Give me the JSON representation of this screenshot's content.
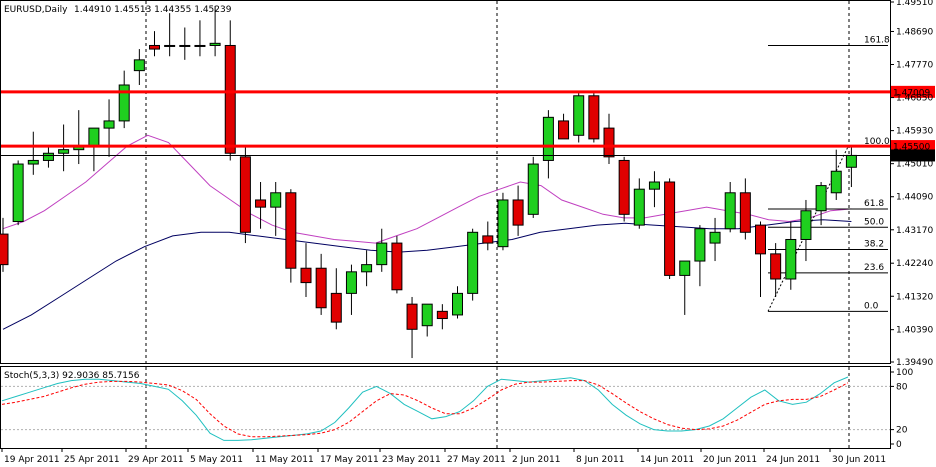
{
  "chart_data": {
    "type": "candlestick",
    "header": {
      "title": "EURUSD,Daily",
      "ohlc": "1.44910 1.45513 1.44355 1.45239"
    },
    "colors": {
      "bull": "#1fcf1f",
      "bear": "#e00000",
      "frame": "#000000",
      "resistance": "#ff0000",
      "ma_fast": "#c040c0",
      "ma_slow": "#000060",
      "stoch_main": "#20c0c0",
      "stoch_signal": "#ff0000"
    },
    "price_axis": {
      "min": 1.3949,
      "max": 1.4951,
      "ticks": [
        "1.49510",
        "1.48690",
        "1.47770",
        "1.46850",
        "1.45930",
        "1.45010",
        "1.44090",
        "1.43170",
        "1.42240",
        "1.41320",
        "1.40390",
        "1.39490"
      ]
    },
    "date_labels": [
      "19 Apr 2011",
      "25 Apr 2011",
      "29 Apr 2011",
      "5 May 2011",
      "11 May 2011",
      "17 May 2011",
      "23 May 2011",
      "27 May 2011",
      "2 Jun 2011",
      "8 Jun 2011",
      "14 Jun 2011",
      "20 Jun 2011",
      "24 Jun 2011",
      "30 Jun 2011"
    ],
    "candles": [
      {
        "o": 1.4305,
        "h": 1.435,
        "l": 1.42,
        "c": 1.422
      },
      {
        "o": 1.434,
        "h": 1.451,
        "l": 1.433,
        "c": 1.45
      },
      {
        "o": 1.45,
        "h": 1.459,
        "l": 1.447,
        "c": 1.451
      },
      {
        "o": 1.451,
        "h": 1.455,
        "l": 1.449,
        "c": 1.453
      },
      {
        "o": 1.453,
        "h": 1.461,
        "l": 1.448,
        "c": 1.454
      },
      {
        "o": 1.454,
        "h": 1.465,
        "l": 1.45,
        "c": 1.455
      },
      {
        "o": 1.455,
        "h": 1.46,
        "l": 1.448,
        "c": 1.46
      },
      {
        "o": 1.46,
        "h": 1.468,
        "l": 1.452,
        "c": 1.462
      },
      {
        "o": 1.462,
        "h": 1.476,
        "l": 1.46,
        "c": 1.472
      },
      {
        "o": 1.476,
        "h": 1.482,
        "l": 1.472,
        "c": 1.479
      },
      {
        "o": 1.483,
        "h": 1.487,
        "l": 1.48,
        "c": 1.482
      },
      {
        "o": 1.483,
        "h": 1.492,
        "l": 1.48,
        "c": 1.483
      },
      {
        "o": 1.483,
        "h": 1.488,
        "l": 1.479,
        "c": 1.483
      },
      {
        "o": 1.483,
        "h": 1.49,
        "l": 1.48,
        "c": 1.483
      },
      {
        "o": 1.483,
        "h": 1.494,
        "l": 1.48,
        "c": 1.4836
      },
      {
        "o": 1.483,
        "h": 1.49,
        "l": 1.451,
        "c": 1.453
      },
      {
        "o": 1.452,
        "h": 1.455,
        "l": 1.428,
        "c": 1.431
      },
      {
        "o": 1.44,
        "h": 1.445,
        "l": 1.432,
        "c": 1.438
      },
      {
        "o": 1.438,
        "h": 1.445,
        "l": 1.43,
        "c": 1.442
      },
      {
        "o": 1.442,
        "h": 1.443,
        "l": 1.417,
        "c": 1.421
      },
      {
        "o": 1.421,
        "h": 1.428,
        "l": 1.413,
        "c": 1.417
      },
      {
        "o": 1.421,
        "h": 1.425,
        "l": 1.408,
        "c": 1.41
      },
      {
        "o": 1.414,
        "h": 1.421,
        "l": 1.404,
        "c": 1.406
      },
      {
        "o": 1.414,
        "h": 1.422,
        "l": 1.408,
        "c": 1.42
      },
      {
        "o": 1.42,
        "h": 1.426,
        "l": 1.416,
        "c": 1.422
      },
      {
        "o": 1.422,
        "h": 1.432,
        "l": 1.42,
        "c": 1.428
      },
      {
        "o": 1.428,
        "h": 1.43,
        "l": 1.414,
        "c": 1.415
      },
      {
        "o": 1.411,
        "h": 1.413,
        "l": 1.396,
        "c": 1.404
      },
      {
        "o": 1.405,
        "h": 1.411,
        "l": 1.402,
        "c": 1.411
      },
      {
        "o": 1.409,
        "h": 1.411,
        "l": 1.404,
        "c": 1.407
      },
      {
        "o": 1.408,
        "h": 1.416,
        "l": 1.407,
        "c": 1.414
      },
      {
        "o": 1.414,
        "h": 1.432,
        "l": 1.412,
        "c": 1.431
      },
      {
        "o": 1.43,
        "h": 1.434,
        "l": 1.426,
        "c": 1.428
      },
      {
        "o": 1.427,
        "h": 1.442,
        "l": 1.426,
        "c": 1.44
      },
      {
        "o": 1.44,
        "h": 1.444,
        "l": 1.43,
        "c": 1.433
      },
      {
        "o": 1.436,
        "h": 1.452,
        "l": 1.435,
        "c": 1.45
      },
      {
        "o": 1.451,
        "h": 1.465,
        "l": 1.446,
        "c": 1.463
      },
      {
        "o": 1.462,
        "h": 1.464,
        "l": 1.457,
        "c": 1.457
      },
      {
        "o": 1.458,
        "h": 1.47,
        "l": 1.456,
        "c": 1.469
      },
      {
        "o": 1.469,
        "h": 1.47,
        "l": 1.456,
        "c": 1.457
      },
      {
        "o": 1.46,
        "h": 1.464,
        "l": 1.45,
        "c": 1.452
      },
      {
        "o": 1.451,
        "h": 1.452,
        "l": 1.434,
        "c": 1.436
      },
      {
        "o": 1.433,
        "h": 1.446,
        "l": 1.432,
        "c": 1.443
      },
      {
        "o": 1.443,
        "h": 1.448,
        "l": 1.438,
        "c": 1.445
      },
      {
        "o": 1.445,
        "h": 1.446,
        "l": 1.418,
        "c": 1.419
      },
      {
        "o": 1.419,
        "h": 1.423,
        "l": 1.408,
        "c": 1.423
      },
      {
        "o": 1.423,
        "h": 1.433,
        "l": 1.416,
        "c": 1.432
      },
      {
        "o": 1.428,
        "h": 1.435,
        "l": 1.423,
        "c": 1.431
      },
      {
        "o": 1.432,
        "h": 1.445,
        "l": 1.431,
        "c": 1.442
      },
      {
        "o": 1.442,
        "h": 1.446,
        "l": 1.429,
        "c": 1.431
      },
      {
        "o": 1.433,
        "h": 1.434,
        "l": 1.413,
        "c": 1.425
      },
      {
        "o": 1.425,
        "h": 1.428,
        "l": 1.413,
        "c": 1.418
      },
      {
        "o": 1.418,
        "h": 1.434,
        "l": 1.415,
        "c": 1.429
      },
      {
        "o": 1.429,
        "h": 1.44,
        "l": 1.423,
        "c": 1.437
      },
      {
        "o": 1.437,
        "h": 1.445,
        "l": 1.433,
        "c": 1.444
      },
      {
        "o": 1.442,
        "h": 1.454,
        "l": 1.44,
        "c": 1.448
      },
      {
        "o": 1.4491,
        "h": 1.4551,
        "l": 1.4436,
        "c": 1.4524
      }
    ],
    "ma_fast": [
      [
        1.432,
        1.434,
        1.437,
        1.441,
        1.445,
        1.45,
        1.455,
        1.458,
        1.456,
        1.45,
        1.444,
        1.44,
        1.436,
        1.433,
        1.431,
        1.43,
        1.429,
        1.4285,
        1.428,
        1.43,
        1.432,
        1.435,
        1.438,
        1.441,
        1.443,
        1.445,
        1.444,
        1.44,
        1.438,
        1.436,
        1.435,
        1.435,
        1.436,
        1.437,
        1.438,
        1.437,
        1.436,
        1.4345,
        1.434,
        1.435,
        1.437,
        1.4375
      ]
    ],
    "ma_slow": [
      1.404,
      1.408,
      1.413,
      1.418,
      1.423,
      1.427,
      1.43,
      1.431,
      1.431,
      1.43,
      1.429,
      1.428,
      1.427,
      1.426,
      1.4255,
      1.426,
      1.427,
      1.428,
      1.429,
      1.431,
      1.432,
      1.433,
      1.4335,
      1.433,
      1.4325,
      1.432,
      1.432,
      1.433,
      1.434,
      1.4345,
      1.434
    ],
    "horizontal_lines": [
      {
        "label": "1.47009",
        "value": 1.47009,
        "color": "#ff0000"
      },
      {
        "label": "1.45500",
        "value": 1.455,
        "color": "#ff0000"
      },
      {
        "label": "1.45239",
        "value": 1.45239,
        "color": "#000000"
      }
    ],
    "fibonacci": {
      "levels": [
        {
          "label": "161.8",
          "value": 1.483
        },
        {
          "label": "100.0",
          "value": 1.4548
        },
        {
          "label": "61.8",
          "value": 1.4375
        },
        {
          "label": "50.0",
          "value": 1.4324
        },
        {
          "label": "38.2",
          "value": 1.4262
        },
        {
          "label": "23.6",
          "value": 1.4197
        },
        {
          "label": "0.0",
          "value": 1.409
        }
      ]
    },
    "stochastic": {
      "label": "Stoch(5,3,3) 92.9036 85.7156",
      "ticks": [
        "100",
        "80",
        "20",
        "0"
      ],
      "main": [
        60,
        66,
        72,
        78,
        84,
        88,
        90,
        90,
        88,
        86,
        84,
        80,
        76,
        60,
        40,
        15,
        5,
        5,
        6,
        8,
        10,
        12,
        14,
        18,
        30,
        50,
        72,
        80,
        70,
        55,
        45,
        35,
        38,
        45,
        60,
        80,
        90,
        88,
        86,
        88,
        90,
        92,
        88,
        75,
        55,
        40,
        28,
        20,
        18,
        18,
        20,
        25,
        35,
        50,
        65,
        75,
        60,
        55,
        58,
        70,
        85,
        93
      ],
      "signal": [
        55,
        58,
        62,
        66,
        72,
        78,
        83,
        86,
        87,
        87,
        86,
        84,
        82,
        74,
        62,
        42,
        25,
        14,
        10,
        10,
        11,
        12,
        13,
        15,
        20,
        30,
        45,
        60,
        70,
        68,
        60,
        50,
        42,
        42,
        50,
        62,
        75,
        83,
        86,
        86,
        87,
        88,
        88,
        82,
        70,
        57,
        45,
        35,
        27,
        22,
        20,
        21,
        25,
        33,
        44,
        55,
        60,
        62,
        62,
        66,
        75,
        85
      ]
    }
  }
}
